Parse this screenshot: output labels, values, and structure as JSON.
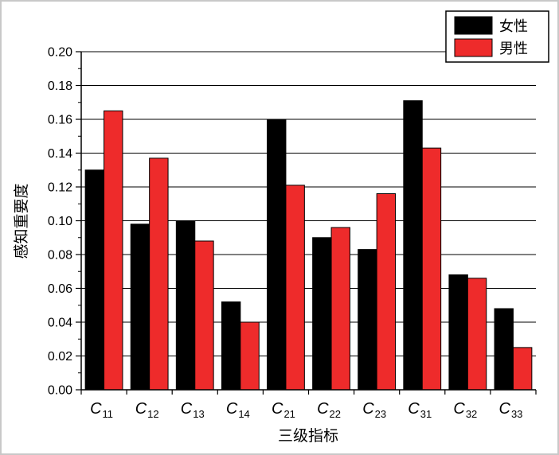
{
  "chart_data": {
    "type": "bar",
    "categories": [
      {
        "main": "C",
        "sub": "11"
      },
      {
        "main": "C",
        "sub": "12"
      },
      {
        "main": "C",
        "sub": "13"
      },
      {
        "main": "C",
        "sub": "14"
      },
      {
        "main": "C",
        "sub": "21"
      },
      {
        "main": "C",
        "sub": "22"
      },
      {
        "main": "C",
        "sub": "23"
      },
      {
        "main": "C",
        "sub": "31"
      },
      {
        "main": "C",
        "sub": "32"
      },
      {
        "main": "C",
        "sub": "33"
      }
    ],
    "series": [
      {
        "name": "女性",
        "color": "#000000",
        "values": [
          0.13,
          0.098,
          0.1,
          0.052,
          0.16,
          0.09,
          0.083,
          0.171,
          0.068,
          0.048
        ]
      },
      {
        "name": "男性",
        "color": "#ee2b2b",
        "values": [
          0.165,
          0.137,
          0.088,
          0.04,
          0.121,
          0.096,
          0.116,
          0.143,
          0.066,
          0.025
        ]
      }
    ],
    "xlabel": "三级指标",
    "ylabel": "感知重要度",
    "ylim": [
      0,
      0.2
    ],
    "yticks": [
      "0.00",
      "0.02",
      "0.04",
      "0.06",
      "0.08",
      "0.10",
      "0.12",
      "0.14",
      "0.16",
      "0.18",
      "0.20"
    ],
    "grid": "horizontal",
    "legend_position": "top-right"
  }
}
